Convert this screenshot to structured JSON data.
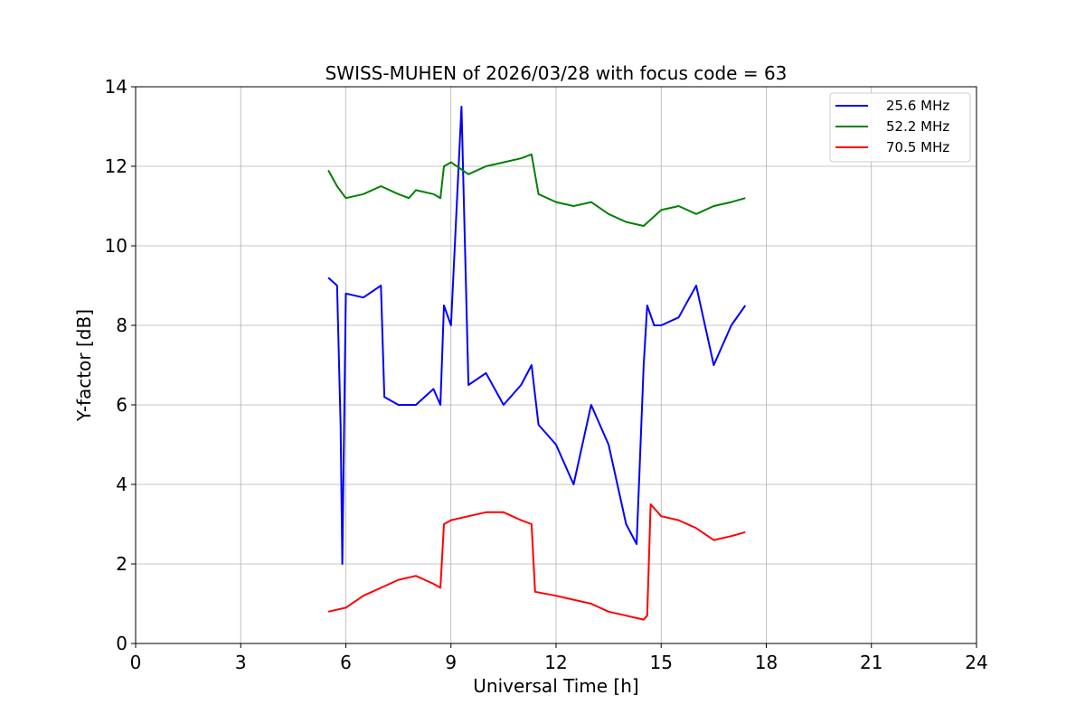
{
  "chart_data": {
    "type": "line",
    "title": "SWISS-MUHEN of 2026/03/28 with focus code = 63",
    "xlabel": "Universal Time [h]",
    "ylabel": "Y-factor [dB]",
    "xlim": [
      0,
      24
    ],
    "ylim": [
      0,
      14
    ],
    "xticks": [
      0,
      3,
      6,
      9,
      12,
      15,
      18,
      21,
      24
    ],
    "yticks": [
      0,
      2,
      4,
      6,
      8,
      10,
      12,
      14
    ],
    "grid": true,
    "legend_position": "top-right",
    "series": [
      {
        "name": "25.6 MHz",
        "color": "#0000ff",
        "x": [
          5.5,
          5.75,
          5.85,
          5.9,
          6.0,
          6.5,
          7.0,
          7.1,
          7.5,
          8.0,
          8.5,
          8.7,
          8.8,
          9.0,
          9.3,
          9.5,
          10.0,
          10.5,
          11.0,
          11.3,
          11.5,
          12.0,
          12.5,
          13.0,
          13.5,
          14.0,
          14.3,
          14.5,
          14.6,
          14.8,
          15.0,
          15.5,
          16.0,
          16.5,
          17.0,
          17.4
        ],
        "y": [
          9.2,
          9.0,
          5.5,
          2.0,
          8.8,
          8.7,
          9.0,
          6.2,
          6.0,
          6.0,
          6.4,
          6.0,
          8.5,
          8.0,
          13.5,
          6.5,
          6.8,
          6.0,
          6.5,
          7.0,
          5.5,
          5.0,
          4.0,
          6.0,
          5.0,
          3.0,
          2.5,
          7.0,
          8.5,
          8.0,
          8.0,
          8.2,
          9.0,
          7.0,
          8.0,
          8.5
        ]
      },
      {
        "name": "52.2 MHz",
        "color": "#008000",
        "x": [
          5.5,
          5.75,
          6.0,
          6.5,
          7.0,
          7.5,
          7.8,
          8.0,
          8.5,
          8.7,
          8.8,
          9.0,
          9.5,
          10.0,
          10.5,
          11.0,
          11.3,
          11.5,
          12.0,
          12.5,
          13.0,
          13.5,
          14.0,
          14.5,
          15.0,
          15.5,
          16.0,
          16.5,
          17.0,
          17.4
        ],
        "y": [
          11.9,
          11.5,
          11.2,
          11.3,
          11.5,
          11.3,
          11.2,
          11.4,
          11.3,
          11.2,
          12.0,
          12.1,
          11.8,
          12.0,
          12.1,
          12.2,
          12.3,
          11.3,
          11.1,
          11.0,
          11.1,
          10.8,
          10.6,
          10.5,
          10.9,
          11.0,
          10.8,
          11.0,
          11.1,
          11.2
        ]
      },
      {
        "name": "70.5 MHz",
        "color": "#ff0000",
        "x": [
          5.5,
          6.0,
          6.5,
          7.0,
          7.5,
          8.0,
          8.5,
          8.7,
          8.8,
          9.0,
          9.5,
          10.0,
          10.5,
          11.0,
          11.3,
          11.4,
          12.0,
          12.5,
          13.0,
          13.5,
          14.0,
          14.5,
          14.6,
          14.7,
          15.0,
          15.5,
          16.0,
          16.5,
          17.0,
          17.4
        ],
        "y": [
          0.8,
          0.9,
          1.2,
          1.4,
          1.6,
          1.7,
          1.5,
          1.4,
          3.0,
          3.1,
          3.2,
          3.3,
          3.3,
          3.1,
          3.0,
          1.3,
          1.2,
          1.1,
          1.0,
          0.8,
          0.7,
          0.6,
          0.7,
          3.5,
          3.2,
          3.1,
          2.9,
          2.6,
          2.7,
          2.8
        ]
      }
    ]
  }
}
